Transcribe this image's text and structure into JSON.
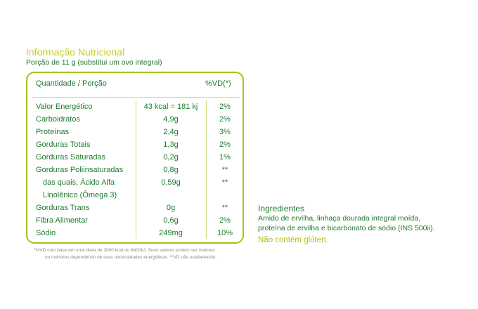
{
  "header": {
    "title": "Informação Nutricional",
    "portion": "Porção de 11 g (substitui um ovo integral)"
  },
  "table": {
    "col_label": "Quantidade / Porção",
    "col_vd": "%VD(*)",
    "rows": [
      {
        "name": "Valor Energético",
        "amount": "43 kcal = 181 kj",
        "vd": "2%"
      },
      {
        "name": "Carboidratos",
        "amount": "4,9g",
        "vd": "2%"
      },
      {
        "name": "Proteínas",
        "amount": "2,4g",
        "vd": "3%"
      },
      {
        "name": "Gorduras Totais",
        "amount": "1,3g",
        "vd": "2%"
      },
      {
        "name": "Gorduras Saturadas",
        "amount": "0,2g",
        "vd": "1%"
      },
      {
        "name": "Gorduras Poliinsaturadas",
        "amount": "0,8g",
        "vd": "**"
      },
      {
        "name": "das quais, Ácido Alfa",
        "name2": "Linolênico (Ômega 3)",
        "amount": "0,59g",
        "vd": "**"
      },
      {
        "name": "Gorduras Trans",
        "amount": "0g",
        "vd": "**"
      },
      {
        "name": "Fibra Alimentar",
        "amount": "0,6g",
        "vd": "2%"
      },
      {
        "name": "Sódio",
        "amount": "249mg",
        "vd": "10%"
      }
    ]
  },
  "footnote": {
    "line1": "*%VD com base em uma dieta de 2000 kcal ou 8400kJ. Seus valores podem ser maiores",
    "line2": "ou menores dependendo de suas necessidades energéticas. **VD não estabelecido."
  },
  "ingredients": {
    "title": "Ingredientes",
    "line1": "Amido de ervilha, linhaça dourada integral moída,",
    "line2": "proteína de ervilha e bicarbonato de sódio (INS 500ii).",
    "gluten": "Não contém glúten."
  }
}
